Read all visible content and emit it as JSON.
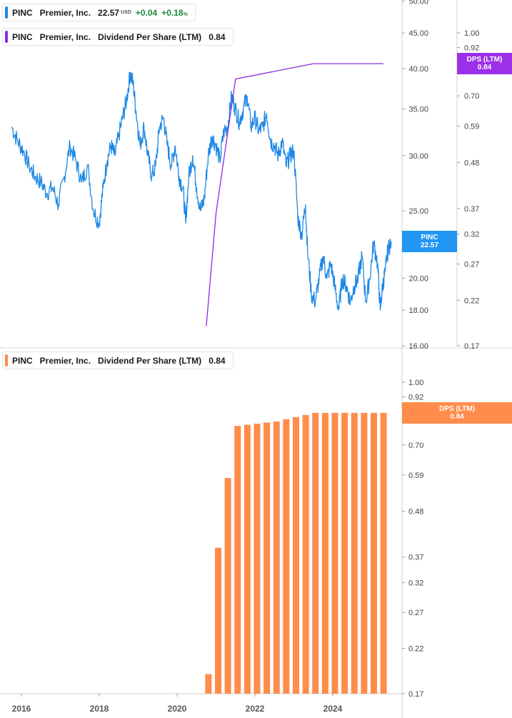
{
  "legend_top": {
    "symbol": "PINC",
    "name": "Premier, Inc.",
    "price": "22.57",
    "currency": "USD",
    "change": "+0.04",
    "change_pct": "+0.18",
    "pct_sign": "%",
    "color": "#1e88e5"
  },
  "legend_dps_top": {
    "symbol": "PINC",
    "name": "Premier, Inc.",
    "metric": "Dividend Per Share (LTM)",
    "value": "0.84",
    "color": "#8a2be2"
  },
  "legend_dps_bottom": {
    "symbol": "PINC",
    "name": "Premier, Inc.",
    "metric": "Dividend Per Share (LTM)",
    "value": "0.84",
    "color": "#ff8c4a"
  },
  "tags": {
    "price": {
      "label": "PINC",
      "value": "22.57",
      "color": "#2196f3"
    },
    "dps_top": {
      "label": "DPS (LTM)",
      "value": "0.84",
      "color": "#9b30e8"
    },
    "dps_bottom": {
      "label": "DPS (LTM)",
      "value": "0.84",
      "color": "#ff8c4a"
    }
  },
  "chart_data": [
    {
      "type": "line",
      "scale": "log",
      "series": [
        {
          "name": "PINC",
          "axis": "left",
          "x": [
            2015.75,
            2015.9,
            2016.05,
            2016.2,
            2016.35,
            2016.5,
            2016.65,
            2016.8,
            2016.95,
            2017.1,
            2017.25,
            2017.4,
            2017.55,
            2017.7,
            2017.85,
            2018.0,
            2018.1,
            2018.2,
            2018.3,
            2018.4,
            2018.5,
            2018.6,
            2018.7,
            2018.8,
            2018.87,
            2018.95,
            2019.05,
            2019.15,
            2019.25,
            2019.35,
            2019.45,
            2019.55,
            2019.65,
            2019.75,
            2019.85,
            2019.95,
            2020.05,
            2020.15,
            2020.22,
            2020.3,
            2020.4,
            2020.5,
            2020.6,
            2020.7,
            2020.8,
            2020.9,
            2021.0,
            2021.1,
            2021.2,
            2021.3,
            2021.4,
            2021.5,
            2021.6,
            2021.7,
            2021.8,
            2021.9,
            2022.0,
            2022.1,
            2022.2,
            2022.3,
            2022.4,
            2022.5,
            2022.6,
            2022.7,
            2022.8,
            2022.9,
            2023.0,
            2023.1,
            2023.2,
            2023.3,
            2023.35,
            2023.45,
            2023.55,
            2023.65,
            2023.75,
            2023.85,
            2023.95,
            2024.05,
            2024.15,
            2024.25,
            2024.35,
            2024.45,
            2024.55,
            2024.65,
            2024.75,
            2024.85,
            2024.95,
            2025.05,
            2025.15,
            2025.22,
            2025.28,
            2025.35,
            2025.42,
            2025.5
          ],
          "y": [
            33.0,
            31.5,
            30.5,
            29.0,
            28.0,
            27.5,
            26.5,
            27.0,
            25.5,
            28.0,
            31.0,
            29.5,
            27.5,
            29.0,
            25.0,
            24.0,
            27.0,
            29.5,
            31.0,
            30.0,
            32.0,
            34.0,
            36.0,
            39.5,
            38.0,
            34.5,
            31.0,
            33.0,
            30.0,
            28.0,
            29.0,
            33.0,
            34.0,
            31.0,
            29.0,
            31.0,
            28.0,
            27.0,
            24.0,
            28.0,
            30.0,
            27.0,
            25.0,
            26.0,
            30.0,
            32.0,
            31.0,
            29.5,
            32.5,
            33.0,
            36.5,
            35.0,
            33.5,
            35.0,
            36.5,
            33.0,
            34.0,
            32.5,
            33.0,
            34.5,
            31.5,
            31.0,
            30.0,
            31.5,
            29.0,
            30.0,
            30.5,
            24.5,
            23.0,
            25.5,
            22.0,
            19.0,
            18.5,
            20.0,
            21.5,
            20.0,
            21.0,
            19.5,
            18.0,
            20.0,
            19.5,
            18.5,
            19.5,
            20.0,
            21.5,
            18.5,
            20.0,
            22.5,
            21.0,
            18.0,
            19.5,
            20.5,
            22.0,
            22.57
          ]
        },
        {
          "name": "DPS (LTM)",
          "axis": "right",
          "x": [
            2020.75,
            2021.0,
            2021.5,
            2023.5,
            2025.3
          ],
          "y": [
            0.19,
            0.36,
            0.77,
            0.84,
            0.84
          ]
        }
      ],
      "left_axis": {
        "ticks": [
          "16.00",
          "18.00",
          "20.00",
          "25.00",
          "30.00",
          "35.00",
          "40.00",
          "45.00",
          "50.00"
        ],
        "range": [
          16,
          50
        ]
      },
      "right_axis": {
        "ticks": [
          "0.17",
          "0.22",
          "0.27",
          "0.32",
          "0.37",
          "0.48",
          "0.59",
          "0.70",
          "0.81",
          "0.92",
          "1.00"
        ],
        "range": [
          0.17,
          1.1
        ]
      }
    },
    {
      "type": "bar",
      "scale": "log",
      "series": [
        {
          "name": "DPS (LTM)",
          "x": [
            2020.75,
            2021.0,
            2021.25,
            2021.5,
            2021.75,
            2022.0,
            2022.25,
            2022.5,
            2022.75,
            2023.0,
            2023.25,
            2023.5,
            2023.75,
            2024.0,
            2024.25,
            2024.5,
            2024.75,
            2025.0,
            2025.25
          ],
          "values": [
            0.19,
            0.39,
            0.58,
            0.78,
            0.785,
            0.79,
            0.795,
            0.8,
            0.81,
            0.82,
            0.83,
            0.84,
            0.84,
            0.84,
            0.84,
            0.84,
            0.84,
            0.84,
            0.84
          ]
        }
      ],
      "right_axis": {
        "ticks": [
          "0.17",
          "0.22",
          "0.27",
          "0.32",
          "0.37",
          "0.48",
          "0.59",
          "0.70",
          "0.81",
          "0.92",
          "1.00"
        ],
        "range": [
          0.17,
          1.1
        ]
      },
      "x_axis": {
        "ticks": [
          "2016",
          "2018",
          "2020",
          "2022",
          "2024"
        ]
      }
    }
  ]
}
